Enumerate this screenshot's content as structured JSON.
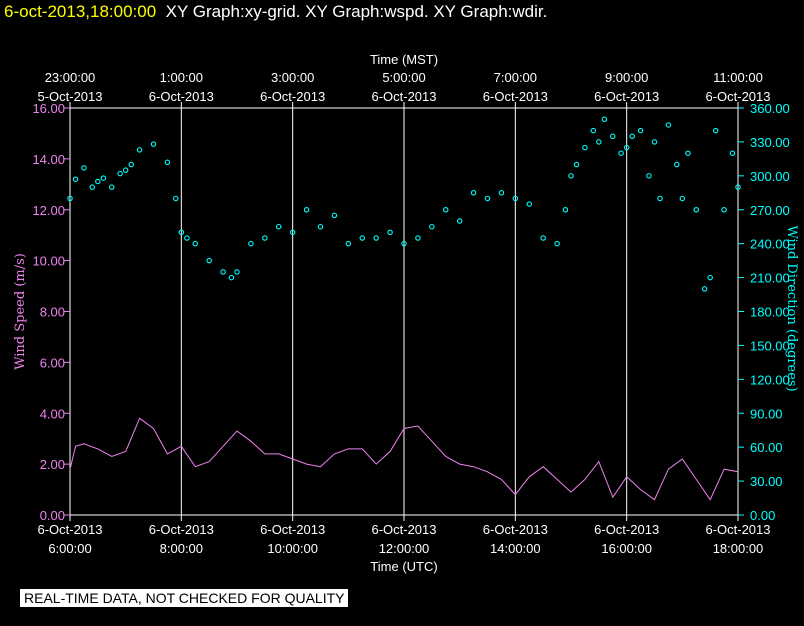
{
  "header": {
    "timestamp": "6-oct-2013,18:00:00",
    "graphs": "XY Graph:xy-grid.  XY Graph:wspd.  XY Graph:wdir."
  },
  "footer": {
    "note": "REAL-TIME DATA, NOT CHECKED FOR QUALITY"
  },
  "colors": {
    "wind_speed": "#ee82ee",
    "wind_direction": "#00ffff",
    "grid": "#ffffff",
    "background": "#000000",
    "header_time": "#ffff00"
  },
  "chart_data": {
    "type": "line",
    "top_axis_title": "Time (MST)",
    "bottom_axis_title": "Time (UTC)",
    "left_axis_title": "Wind Speed (m/s)",
    "right_axis_title": "Wind Direction (degrees)",
    "x_range_hours_utc": [
      6,
      18
    ],
    "top_ticks": [
      {
        "time": "23:00:00",
        "date": "5-Oct-2013"
      },
      {
        "time": "1:00:00",
        "date": "6-Oct-2013"
      },
      {
        "time": "3:00:00",
        "date": "6-Oct-2013"
      },
      {
        "time": "5:00:00",
        "date": "6-Oct-2013"
      },
      {
        "time": "7:00:00",
        "date": "6-Oct-2013"
      },
      {
        "time": "9:00:00",
        "date": "6-Oct-2013"
      },
      {
        "time": "11:00:00",
        "date": "6-Oct-2013"
      }
    ],
    "bottom_ticks": [
      {
        "date": "6-Oct-2013",
        "time": "6:00:00"
      },
      {
        "date": "6-Oct-2013",
        "time": "8:00:00"
      },
      {
        "date": "6-Oct-2013",
        "time": "10:00:00"
      },
      {
        "date": "6-Oct-2013",
        "time": "12:00:00"
      },
      {
        "date": "6-Oct-2013",
        "time": "14:00:00"
      },
      {
        "date": "6-Oct-2013",
        "time": "16:00:00"
      },
      {
        "date": "6-Oct-2013",
        "time": "18:00:00"
      }
    ],
    "left_ylim": [
      0,
      16
    ],
    "left_ticks": [
      "0.00",
      "2.00",
      "4.00",
      "6.00",
      "8.00",
      "10.00",
      "12.00",
      "14.00",
      "16.00"
    ],
    "right_ylim": [
      0,
      360
    ],
    "right_ticks": [
      "0.00",
      "30.00",
      "60.00",
      "90.00",
      "120.00",
      "150.00",
      "180.00",
      "210.00",
      "240.00",
      "270.00",
      "300.00",
      "330.00",
      "360.00"
    ],
    "series": [
      {
        "name": "Wind Speed (m/s)",
        "style": "line",
        "x_hours": [
          6.0,
          6.1,
          6.25,
          6.5,
          6.75,
          7.0,
          7.25,
          7.5,
          7.75,
          8.0,
          8.25,
          8.5,
          8.75,
          9.0,
          9.25,
          9.5,
          9.75,
          10.0,
          10.25,
          10.5,
          10.75,
          11.0,
          11.25,
          11.5,
          11.75,
          12.0,
          12.25,
          12.5,
          12.75,
          13.0,
          13.25,
          13.5,
          13.75,
          14.0,
          14.25,
          14.5,
          14.75,
          15.0,
          15.25,
          15.5,
          15.75,
          16.0,
          16.25,
          16.5,
          16.75,
          17.0,
          17.25,
          17.5,
          17.75,
          18.0
        ],
        "values": [
          1.8,
          2.7,
          2.8,
          2.6,
          2.3,
          2.5,
          3.8,
          3.4,
          2.4,
          2.7,
          1.9,
          2.1,
          2.7,
          3.3,
          2.9,
          2.4,
          2.4,
          2.2,
          2.0,
          1.9,
          2.4,
          2.6,
          2.6,
          2.0,
          2.5,
          3.4,
          3.5,
          2.9,
          2.3,
          2.0,
          1.9,
          1.7,
          1.4,
          0.8,
          1.5,
          1.9,
          1.4,
          0.9,
          1.4,
          2.1,
          0.7,
          1.5,
          1.0,
          0.6,
          1.8,
          2.2,
          1.4,
          0.6,
          1.8,
          1.7
        ]
      },
      {
        "name": "Wind Direction (degrees)",
        "style": "points",
        "x_hours": [
          6.0,
          6.1,
          6.25,
          6.4,
          6.5,
          6.6,
          6.75,
          6.9,
          7.0,
          7.1,
          7.25,
          7.5,
          7.75,
          7.9,
          8.0,
          8.1,
          8.25,
          8.5,
          8.75,
          8.9,
          9.0,
          9.25,
          9.5,
          9.75,
          10.0,
          10.25,
          10.5,
          10.75,
          11.0,
          11.25,
          11.5,
          11.75,
          12.0,
          12.25,
          12.5,
          12.75,
          13.0,
          13.25,
          13.5,
          13.75,
          14.0,
          14.25,
          14.5,
          14.75,
          14.9,
          15.0,
          15.1,
          15.25,
          15.4,
          15.5,
          15.6,
          15.75,
          15.9,
          16.0,
          16.1,
          16.25,
          16.4,
          16.5,
          16.6,
          16.75,
          16.9,
          17.0,
          17.1,
          17.25,
          17.4,
          17.5,
          17.6,
          17.75,
          17.9,
          18.0
        ],
        "values": [
          280,
          297,
          307,
          290,
          295,
          298,
          290,
          302,
          305,
          310,
          323,
          328,
          312,
          280,
          250,
          245,
          240,
          225,
          215,
          210,
          215,
          240,
          245,
          255,
          250,
          270,
          255,
          265,
          240,
          245,
          245,
          250,
          240,
          245,
          255,
          270,
          260,
          285,
          280,
          285,
          280,
          275,
          245,
          240,
          270,
          300,
          310,
          325,
          340,
          330,
          350,
          335,
          320,
          325,
          335,
          340,
          300,
          330,
          280,
          345,
          310,
          280,
          320,
          270,
          200,
          210,
          340,
          270,
          320,
          290
        ]
      }
    ]
  }
}
